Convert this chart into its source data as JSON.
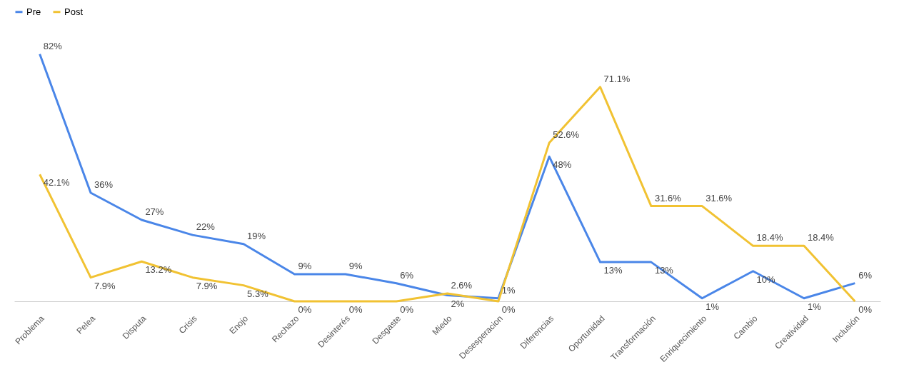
{
  "chart_data": {
    "type": "line",
    "categories": [
      "Problema",
      "Pelea",
      "Disputa",
      "Crisis",
      "Enojo",
      "Rechazo",
      "Desinterés",
      "Desgaste",
      "Miedo",
      "Desesperacion",
      "Diferencias",
      "Oportunidad",
      "Transformación",
      "Enriquecimiento",
      "Cambio",
      "Creatividad",
      "Inclusión"
    ],
    "series": [
      {
        "name": "Pre",
        "color": "#4a86e8",
        "values": [
          82,
          36,
          27,
          22,
          19,
          9,
          9,
          6,
          2,
          1,
          48,
          13,
          13,
          1,
          10,
          1,
          6
        ],
        "value_labels": [
          "82%",
          "36%",
          "27%",
          "22%",
          "19%",
          "9%",
          "9%",
          "6%",
          "2%",
          "1%",
          "48%",
          "13%",
          "13%",
          "1%",
          "10%",
          "1%",
          "6%"
        ]
      },
      {
        "name": "Post",
        "color": "#f1c232",
        "values": [
          42.1,
          7.9,
          13.2,
          7.9,
          5.3,
          0,
          0,
          0,
          2.6,
          0,
          52.6,
          71.1,
          31.6,
          31.6,
          18.4,
          18.4,
          0
        ],
        "value_labels": [
          "42.1%",
          "7.9%",
          "13.2%",
          "7.9%",
          "5.3%",
          "0%",
          "0%",
          "0%",
          "2.6%",
          "0%",
          "52.6%",
          "71.1%",
          "31.6%",
          "31.6%",
          "18.4%",
          "18.4%",
          "0%"
        ]
      }
    ],
    "legend": "top",
    "grid": false,
    "marker": "none",
    "line_style": "solid",
    "tick_labels": "x"
  }
}
